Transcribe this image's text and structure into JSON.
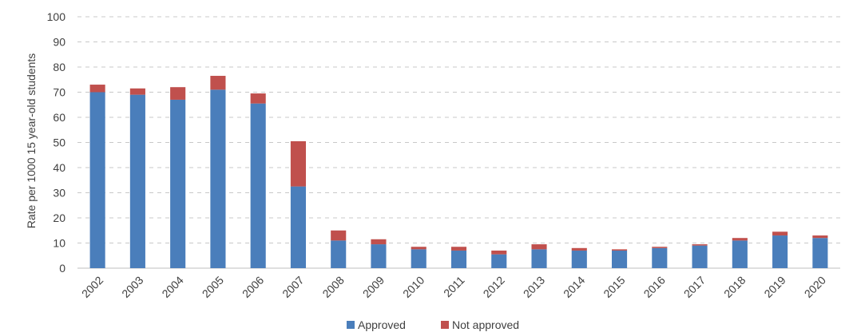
{
  "chart_data": {
    "type": "bar",
    "stacked": true,
    "title": "",
    "xlabel": "",
    "ylabel": "Rate per 1000 15 year-old students",
    "ylim": [
      0,
      100
    ],
    "yticks": [
      "0",
      "10",
      "20",
      "30",
      "40",
      "50",
      "60",
      "70",
      "80",
      "90",
      "100"
    ],
    "grid": true,
    "legend_position": "bottom",
    "categories": [
      "2002",
      "2003",
      "2004",
      "2005",
      "2006",
      "2007",
      "2008",
      "2009",
      "2010",
      "2011",
      "2012",
      "2013",
      "2014",
      "2015",
      "2016",
      "2017",
      "2018",
      "2019",
      "2020"
    ],
    "series": [
      {
        "name": "Approved",
        "color": "#4a7ebb",
        "values": [
          70,
          69,
          67,
          71,
          65.5,
          32.5,
          11,
          9.5,
          7.5,
          7,
          5.5,
          7.5,
          7,
          7,
          8,
          9,
          11,
          13,
          12
        ]
      },
      {
        "name": "Not approved",
        "color": "#c0504d",
        "values": [
          3,
          2.5,
          5,
          5.5,
          4,
          18,
          4,
          2,
          1,
          1.5,
          1.5,
          2,
          1,
          0.5,
          0.5,
          0.5,
          1,
          1.5,
          1
        ]
      }
    ]
  }
}
